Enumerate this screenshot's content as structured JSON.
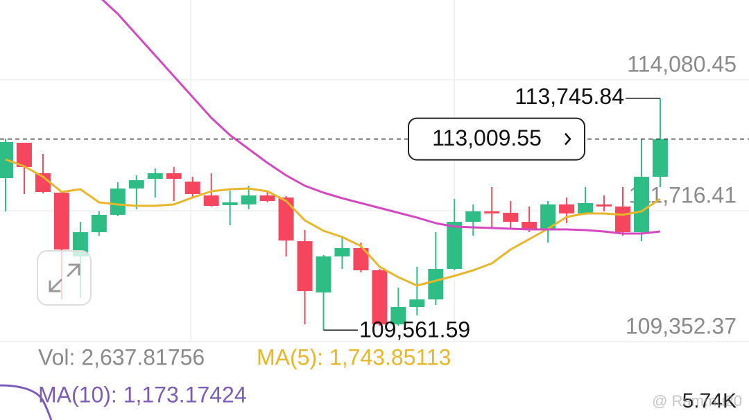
{
  "chart_data": {
    "type": "candlestick",
    "up_color": "#2ebd85",
    "down_color": "#f6465d",
    "open": [
      112304,
      112942,
      112392,
      112042,
      110891,
      111329,
      111642,
      112117,
      112292,
      112392,
      112242,
      111992,
      111817,
      111829,
      111992,
      111954,
      111166,
      110241,
      110891,
      111041,
      110641,
      109665,
      109978,
      110115,
      110666,
      111516,
      111704,
      111679,
      111516,
      111366,
      111829,
      111667,
      111829,
      111792,
      111329,
      112329
    ],
    "high": [
      113017,
      112942,
      112742,
      112042,
      111516,
      111704,
      112229,
      112354,
      112480,
      112505,
      112329,
      112392,
      112079,
      112167,
      112079,
      111979,
      111366,
      110916,
      111266,
      111141,
      110666,
      110328,
      110703,
      111329,
      111929,
      111829,
      112142,
      111892,
      111792,
      111892,
      111954,
      112142,
      111992,
      112142,
      113017,
      113745.84
    ],
    "low": [
      111704,
      112017,
      112029,
      110115,
      110141,
      111266,
      111617,
      111742,
      111954,
      111892,
      111954,
      111792,
      111454,
      111742,
      111867,
      110891,
      109665,
      109561.59,
      110666,
      110603,
      109640,
      109640,
      109828,
      110016,
      110641,
      111266,
      111391,
      111391,
      111329,
      111141,
      111491,
      111642,
      111704,
      111266,
      111166,
      112142
    ],
    "close": [
      112955,
      112505,
      112054,
      111016,
      111329,
      111642,
      112117,
      112267,
      112392,
      112292,
      112017,
      111804,
      111867,
      111992,
      111892,
      111179,
      110266,
      110891,
      111041,
      110641,
      109665,
      109978,
      110115,
      110666,
      111516,
      111704,
      111667,
      111516,
      111366,
      111829,
      111667,
      111854,
      111792,
      111329,
      112329,
      113009.55
    ],
    "ma_lines": [
      {
        "color": "#e8b62a",
        "values": [
          112642,
          112517,
          112329,
          112054,
          112104,
          111867,
          111829,
          111804,
          111804,
          111829,
          111954,
          112067,
          112104,
          112117,
          112067,
          111892,
          111542,
          111354,
          111241,
          111079,
          110703,
          110516,
          110366,
          110453,
          110541,
          110641,
          110766,
          111016,
          111204,
          111391,
          111604,
          111667,
          111667,
          111642,
          111704,
          111929
        ]
      },
      {
        "color": "#d448c0",
        "values": [
          null,
          null,
          null,
          null,
          null,
          115581,
          115269,
          114894,
          114518,
          114143,
          113768,
          113393,
          113080,
          112830,
          112580,
          112354,
          112167,
          112042,
          111942,
          111854,
          111767,
          111679,
          111592,
          111491,
          111429,
          111416,
          111404,
          111391,
          111379,
          111379,
          111379,
          111366,
          111341,
          111304,
          111304,
          111341
        ]
      }
    ],
    "ylim": [
      109352.37,
      114080.45
    ],
    "yticks": [
      {
        "value": 109352.37,
        "label": "109,352.37"
      },
      {
        "value": 111716.41,
        "label": "111,716.41"
      },
      {
        "value": 114080.45,
        "label": "114,080.45"
      }
    ],
    "grid": true,
    "last_price": {
      "value": 113009.55,
      "label": "113,009.55"
    },
    "high_label": {
      "value": 113745.84,
      "label": "113,745.84"
    },
    "low_label": {
      "value": 109561.59,
      "label": "109,561.59"
    }
  },
  "volume": {
    "vol": "Vol: 2,637.81756",
    "ma5": "MA(5): 1,743.85113",
    "ma10": "MA(10): 1,173.17424",
    "axis_label": "5.74K"
  },
  "watermark": "@ Rammu20"
}
